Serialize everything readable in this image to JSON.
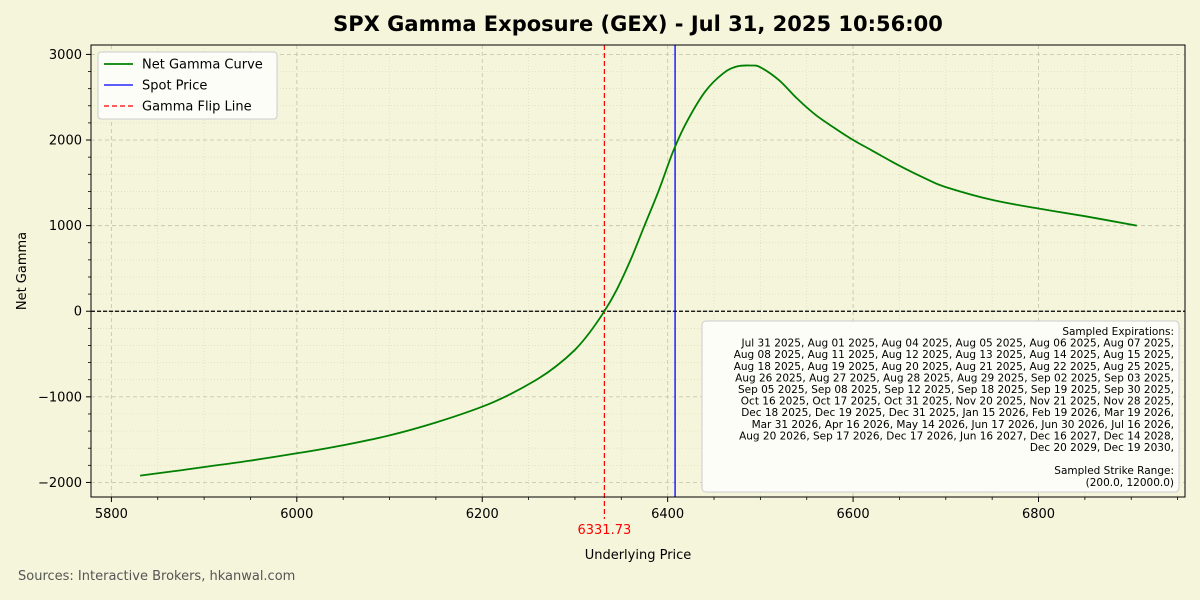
{
  "chart_data": {
    "type": "line",
    "title": "SPX Gamma Exposure (GEX) - Jul 31, 2025 10:56:00",
    "xlabel": "Underlying Price",
    "ylabel": "Net Gamma",
    "xlim": [
      5778,
      6958
    ],
    "ylim": [
      -2170,
      3110
    ],
    "xticks": [
      5800,
      6000,
      6200,
      6400,
      6600,
      6800
    ],
    "yticks": [
      -2000,
      -1000,
      0,
      1000,
      2000,
      3000
    ],
    "xtick_labels": [
      "5800",
      "6000",
      "6200",
      "6400",
      "6600",
      "6800"
    ],
    "ytick_labels": [
      "−2000",
      "−1000",
      "0",
      "1000",
      "2000",
      "3000"
    ],
    "grid": true,
    "legend_position": "top-left",
    "series": [
      {
        "name": "Net Gamma Curve",
        "color": "#008000",
        "x": [
          5831,
          5870,
          5900,
          5950,
          6000,
          6050,
          6100,
          6150,
          6200,
          6230,
          6260,
          6280,
          6300,
          6315,
          6331.73,
          6345,
          6360,
          6375,
          6390,
          6406,
          6420,
          6440,
          6460,
          6475,
          6490,
          6500,
          6520,
          6540,
          6560,
          6580,
          6600,
          6620,
          6650,
          6680,
          6700,
          6750,
          6800,
          6850,
          6906
        ],
        "y": [
          -1920,
          -1865,
          -1820,
          -1745,
          -1660,
          -1565,
          -1450,
          -1300,
          -1115,
          -970,
          -790,
          -640,
          -450,
          -260,
          0,
          250,
          600,
          1000,
          1400,
          1870,
          2200,
          2560,
          2780,
          2860,
          2870,
          2850,
          2700,
          2480,
          2290,
          2140,
          2000,
          1880,
          1700,
          1540,
          1450,
          1300,
          1200,
          1110,
          1000
        ]
      }
    ],
    "vlines": [
      {
        "name": "Spot Price",
        "x": 6408,
        "color": "#0000ff",
        "style": "solid"
      },
      {
        "name": "Gamma Flip Line",
        "x": 6331.73,
        "color": "#ff0000",
        "style": "dashed",
        "label": "6331.73"
      }
    ],
    "hline": {
      "y": 0,
      "color": "#000000",
      "style": "dashed"
    },
    "legend_entries": [
      {
        "label": "Net Gamma Curve",
        "color": "#008000",
        "style": "solid"
      },
      {
        "label": "Spot Price",
        "color": "#0000ff",
        "style": "solid"
      },
      {
        "label": "Gamma Flip Line",
        "color": "#ff0000",
        "style": "dashed"
      }
    ],
    "annotation": {
      "lines": [
        "Sampled Expirations:",
        "Jul 31 2025, Aug 01 2025, Aug 04 2025, Aug 05 2025, Aug 06 2025, Aug 07 2025,",
        "Aug 08 2025, Aug 11 2025, Aug 12 2025, Aug 13 2025, Aug 14 2025, Aug 15 2025,",
        "Aug 18 2025, Aug 19 2025, Aug 20 2025, Aug 21 2025, Aug 22 2025, Aug 25 2025,",
        "Aug 26 2025, Aug 27 2025, Aug 28 2025, Aug 29 2025, Sep 02 2025, Sep 03 2025,",
        "Sep 05 2025, Sep 08 2025, Sep 12 2025, Sep 18 2025, Sep 19 2025, Sep 30 2025,",
        "Oct 16 2025, Oct 17 2025, Oct 31 2025, Nov 20 2025, Nov 21 2025, Nov 28 2025,",
        "Dec 18 2025, Dec 19 2025, Dec 31 2025, Jan 15 2026, Feb 19 2026, Mar 19 2026,",
        "Mar 31 2026, Apr 16 2026, May 14 2026, Jun 17 2026, Jun 30 2026, Jul 16 2026,",
        "Aug 20 2026, Sep 17 2026, Dec 17 2026, Jun 16 2027, Dec 16 2027, Dec 14 2028,",
        "Dec 20 2029, Dec 19 2030,",
        "",
        "Sampled Strike Range:",
        "(200.0, 12000.0)"
      ]
    }
  },
  "footer": {
    "source": "Sources: Interactive Brokers, hkanwal.com"
  }
}
